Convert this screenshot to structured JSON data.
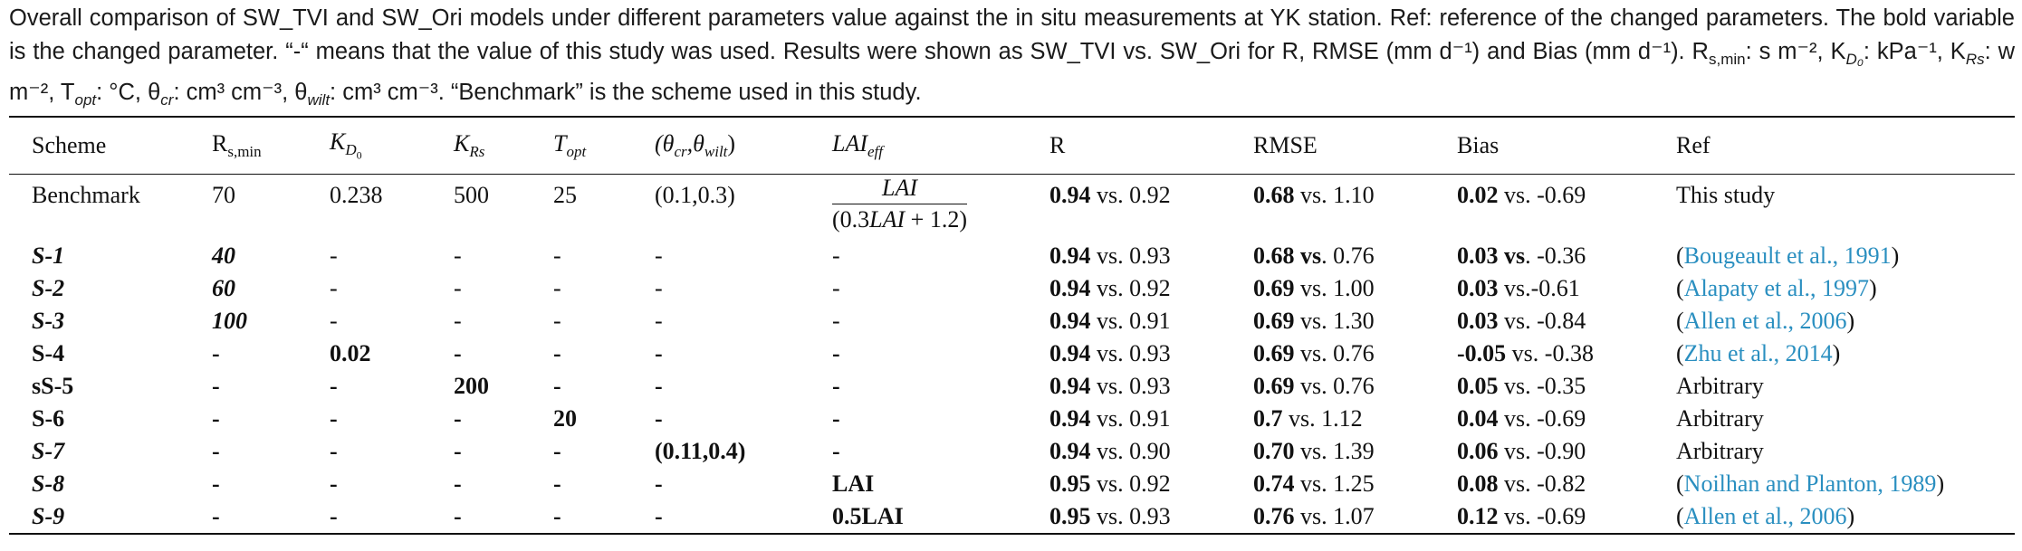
{
  "caption": {
    "line1": "Overall comparison of SW_TVI and SW_Ori models under different parameters value against the in situ measurements at YK station. Ref: reference of the changed",
    "line2": "parameters. The bold variable is the changed parameter. “-“ means that the value of this study was used. Results were shown as SW_TVI vs. SW_Ori for R, RMSE (mm",
    "line3": "d⁻¹) and Bias (mm d⁻¹). R",
    "line3_sub": "s,min",
    "line3_rest": ": s m⁻², K",
    "line3_kd_sub": "D₀",
    "line3_rest2": ": kPa⁻¹, K",
    "line3_krs_sub": "Rs",
    "line3_rest3": ": w m⁻², T",
    "line3_topt_sub": "opt",
    "line3_rest4": ": °C, θ",
    "line3_cr_sub": "cr",
    "line3_rest5": ": cm³ cm⁻³, θ",
    "line3_wilt_sub": "wilt",
    "line3_rest6": ": cm³ cm⁻³. “Benchmark” is the scheme used in this study."
  },
  "table": {
    "headers": {
      "scheme": "Scheme",
      "rs_main": "R",
      "rs_sub": "s,min",
      "kd_main": "K",
      "kd_sub": "D",
      "kd_subsub": "0",
      "krs_main": "K",
      "krs_sub": "Rs",
      "topt_main": "T",
      "topt_sub": "opt",
      "theta": "(θ",
      "theta_cr": "cr",
      "theta_mid": ",θ",
      "theta_wilt": "wilt",
      "theta_close": ")",
      "lai_main": "LAI",
      "lai_sub": "eff",
      "r": "R",
      "rmse": "RMSE",
      "bias": "Bias",
      "ref": "Ref"
    },
    "benchmark": {
      "scheme": "Benchmark",
      "rs": "70",
      "kd": "0.238",
      "krs": "500",
      "topt": "25",
      "theta": "(0.1,0.3)",
      "lai_num": "LAI",
      "lai_den_open": "(0.3",
      "lai_den_var": "LAI",
      "lai_den_close": " + 1.2)",
      "r_bold": "0.94",
      "r_rest": " vs. 0.92",
      "rmse_bold": "0.68",
      "rmse_rest": " vs. 1.10",
      "bias_bold": "0.02",
      "bias_rest": " vs. -0.69",
      "ref": "This study"
    },
    "rows": [
      {
        "scheme": "S-1",
        "rs": "40",
        "kd": "-",
        "krs": "-",
        "topt": "-",
        "theta": "-",
        "lai": "-",
        "r_bold": "0.94",
        "r_rest": " vs. 0.93",
        "rmse_bold": "0.68 vs",
        "rmse_rest": ". 0.76",
        "bias_bold": "0.03 vs",
        "bias_rest": ". -0.36",
        "ref_pre": "(",
        "ref_link": "Bougeault et al., 1991",
        "ref_post": ")"
      },
      {
        "scheme": "S-2",
        "rs": "60",
        "kd": "-",
        "krs": "-",
        "topt": "-",
        "theta": "-",
        "lai": "-",
        "r_bold": "0.94",
        "r_rest": " vs. 0.92",
        "rmse_bold": "0.69",
        "rmse_rest": " vs. 1.00",
        "bias_bold": "0.03",
        "bias_rest": " vs.-0.61",
        "ref_pre": "(",
        "ref_link": "Alapaty et al., 1997",
        "ref_post": ")"
      },
      {
        "scheme": "S-3",
        "rs": "100",
        "kd": "-",
        "krs": "-",
        "topt": "-",
        "theta": "-",
        "lai": "-",
        "r_bold": "0.94",
        "r_rest": " vs. 0.91",
        "rmse_bold": "0.69",
        "rmse_rest": " vs. 1.30",
        "bias_bold": "0.03",
        "bias_rest": " vs. -0.84",
        "ref_pre": "(",
        "ref_link": "Allen et al., 2006",
        "ref_post": ")"
      },
      {
        "scheme": "S-4",
        "rs": "-",
        "kd": "0.02",
        "krs": "-",
        "topt": "-",
        "theta": "-",
        "lai": "-",
        "r_bold": "0.94",
        "r_rest": " vs. 0.93",
        "rmse_bold": "0.69",
        "rmse_rest": " vs. 0.76",
        "bias_bold": "-0.05",
        "bias_rest": " vs. -0.38",
        "ref_pre": "(",
        "ref_link": "Zhu et al., 2014",
        "ref_post": ")"
      },
      {
        "scheme": "sS-5",
        "rs": "-",
        "kd": "-",
        "krs": "200",
        "topt": "-",
        "theta": "-",
        "lai": "-",
        "r_bold": "0.94",
        "r_rest": " vs. 0.93",
        "rmse_bold": "0.69",
        "rmse_rest": " vs. 0.76",
        "bias_bold": "0.05",
        "bias_rest": " vs. -0.35",
        "ref_pre": "",
        "ref_link": "",
        "ref_post": "",
        "ref_text": "Arbitrary"
      },
      {
        "scheme": "S-6",
        "rs": "-",
        "kd": "-",
        "krs": "-",
        "topt": "20",
        "theta": "-",
        "lai": "-",
        "r_bold": "0.94",
        "r_rest": " vs. 0.91",
        "rmse_bold": "0.7",
        "rmse_rest": " vs. 1.12",
        "bias_bold": "0.04",
        "bias_rest": " vs. -0.69",
        "ref_pre": "",
        "ref_link": "",
        "ref_post": "",
        "ref_text": "Arbitrary"
      },
      {
        "scheme": "S-7",
        "rs": "-",
        "kd": "-",
        "krs": "-",
        "topt": "-",
        "theta": "(0.11,0.4)",
        "lai": "-",
        "r_bold": "0.94",
        "r_rest": " vs. 0.90",
        "rmse_bold": "0.70",
        "rmse_rest": " vs. 1.39",
        "bias_bold": "0.06",
        "bias_rest": " vs. -0.90",
        "ref_pre": "",
        "ref_link": "",
        "ref_post": "",
        "ref_text": "Arbitrary"
      },
      {
        "scheme": "S-8",
        "rs": "-",
        "kd": "-",
        "krs": "-",
        "topt": "-",
        "theta": "-",
        "lai": "LAI",
        "r_bold": "0.95",
        "r_rest": " vs. 0.92",
        "rmse_bold": "0.74",
        "rmse_rest": " vs. 1.25",
        "bias_bold": "0.08",
        "bias_rest": " vs. -0.82",
        "ref_pre": "(",
        "ref_link": "Noilhan and Planton, 1989",
        "ref_post": ")"
      },
      {
        "scheme": "S-9",
        "rs": "-",
        "kd": "-",
        "krs": "-",
        "topt": "-",
        "theta": "-",
        "lai": "0.5LAI",
        "r_bold": "0.95",
        "r_rest": " vs. 0.93",
        "rmse_bold": "0.76",
        "rmse_rest": " vs. 1.07",
        "bias_bold": "0.12",
        "bias_rest": " vs. -0.69",
        "ref_pre": "(",
        "ref_link": "Allen et al., 2006",
        "ref_post": ")"
      }
    ]
  },
  "colors": {
    "link": "#2a8fc0",
    "text": "#111111"
  }
}
